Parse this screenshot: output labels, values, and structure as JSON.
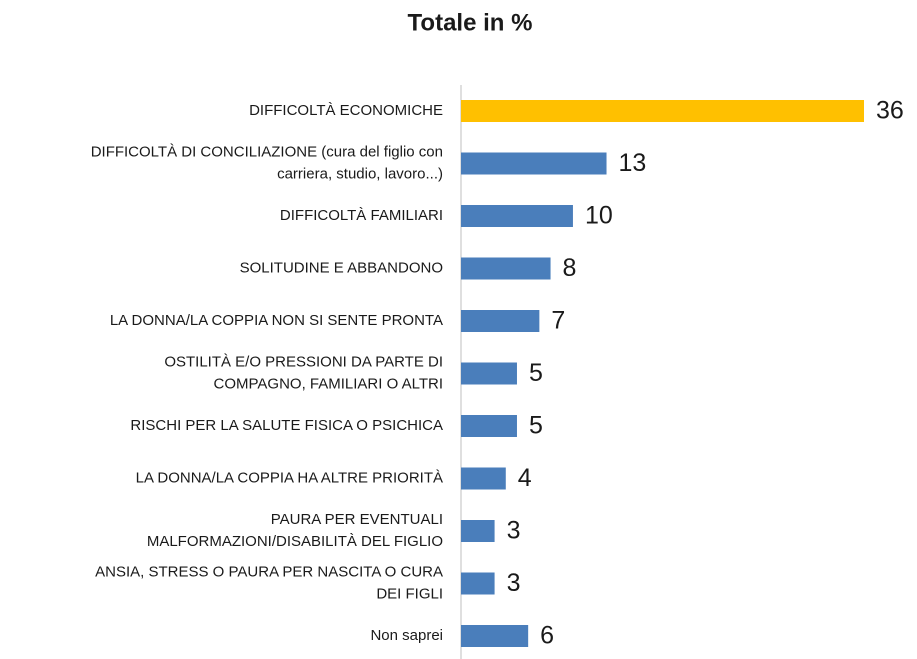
{
  "chart_data": {
    "type": "barh",
    "title": "Totale in %",
    "categories": [
      "DIFFICOLTÀ ECONOMICHE",
      "DIFFICOLTÀ DI CONCILIAZIONE (cura del figlio con\ncarriera, studio, lavoro...)",
      "DIFFICOLTÀ FAMILIARI",
      "SOLITUDINE E ABBANDONO",
      "LA DONNA/LA COPPIA NON SI SENTE PRONTA",
      "OSTILITÀ E/O PRESSIONI DA PARTE DI\nCOMPAGNO, FAMILIARI O ALTRI",
      "RISCHI PER LA SALUTE FISICA O PSICHICA",
      "LA DONNA/LA COPPIA HA ALTRE PRIORITÀ",
      "PAURA PER EVENTUALI\nMALFORMAZIONI/DISABILITÀ DEL FIGLIO",
      "ANSIA, STRESS O PAURA PER NASCITA O CURA\nDEI FIGLI",
      "Non saprei"
    ],
    "values": [
      36,
      13,
      10,
      8,
      7,
      5,
      5,
      4,
      3,
      3,
      6
    ],
    "colors": [
      "#ffc000",
      "#4a7ebb",
      "#4a7ebb",
      "#4a7ebb",
      "#4a7ebb",
      "#4a7ebb",
      "#4a7ebb",
      "#4a7ebb",
      "#4a7ebb",
      "#4a7ebb",
      "#4a7ebb"
    ]
  }
}
